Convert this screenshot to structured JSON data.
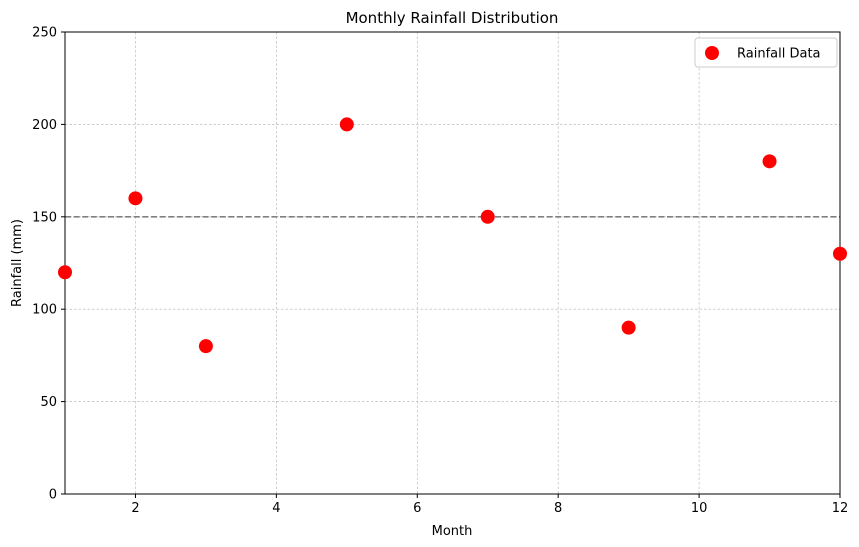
{
  "chart_data": {
    "type": "scatter",
    "title": "Monthly Rainfall Distribution",
    "xlabel": "Month",
    "ylabel": "Rainfall (mm)",
    "xlim": [
      1,
      12
    ],
    "ylim": [
      0,
      250
    ],
    "xticks": [
      2,
      4,
      6,
      8,
      10,
      12
    ],
    "yticks": [
      0,
      50,
      100,
      150,
      200,
      250
    ],
    "grid": true,
    "legend_position": "top-right",
    "series": [
      {
        "name": "Rainfall Data",
        "color": "#ff0000",
        "points": [
          {
            "x": 1,
            "y": 120
          },
          {
            "x": 2,
            "y": 160
          },
          {
            "x": 3,
            "y": 80
          },
          {
            "x": 5,
            "y": 200
          },
          {
            "x": 7,
            "y": 150
          },
          {
            "x": 9,
            "y": 90
          },
          {
            "x": 11,
            "y": 180
          },
          {
            "x": 12,
            "y": 130
          }
        ]
      }
    ],
    "reference_line": {
      "y": 150,
      "style": "dashed",
      "color": "#808080"
    }
  }
}
